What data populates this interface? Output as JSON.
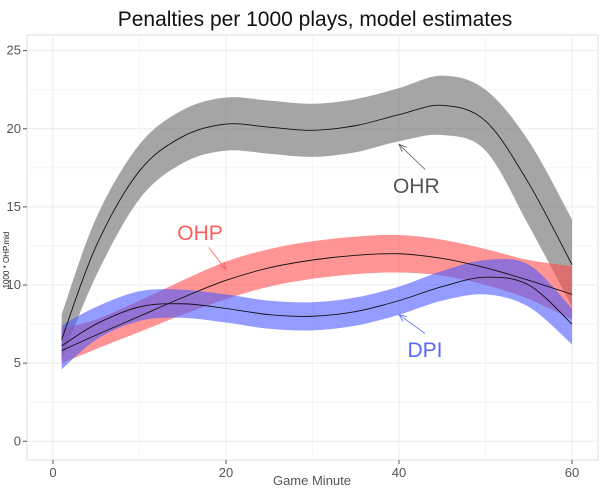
{
  "chart_data": {
    "type": "line",
    "title": "Penalties per 1000 plays, model estimates",
    "xlabel": "Game Minute",
    "ylabel": "1000 * OHP.mid",
    "xlim": [
      -3,
      63
    ],
    "ylim": [
      -1.2,
      26
    ],
    "xticks": [
      0,
      20,
      40,
      60
    ],
    "yticks": [
      0,
      5,
      10,
      15,
      20,
      25
    ],
    "grid": true,
    "x": [
      1,
      5,
      10,
      15,
      20,
      25,
      30,
      35,
      40,
      45,
      50,
      55,
      60
    ],
    "series": [
      {
        "name": "OHR",
        "color": "#7f7f7f",
        "fill_opacity": 0.7,
        "mid": [
          6.5,
          12.5,
          17.3,
          19.5,
          20.3,
          20.1,
          19.9,
          20.2,
          20.9,
          21.5,
          20.5,
          16.5,
          11.3
        ],
        "lo": [
          5.2,
          10.6,
          15.5,
          17.8,
          18.6,
          18.4,
          18.2,
          18.5,
          19.2,
          19.6,
          18.6,
          13.8,
          8.6
        ],
        "hi": [
          8.1,
          14.3,
          19.0,
          21.2,
          22.0,
          21.8,
          21.6,
          21.9,
          22.6,
          23.4,
          22.5,
          19.2,
          14.2
        ]
      },
      {
        "name": "OHP",
        "color": "#ff4d4d",
        "fill_opacity": 0.6,
        "mid": [
          5.8,
          6.8,
          8.0,
          9.2,
          10.3,
          11.1,
          11.6,
          11.9,
          12.0,
          11.7,
          11.1,
          10.3,
          9.4
        ],
        "lo": [
          5.0,
          5.9,
          7.0,
          8.1,
          9.1,
          9.9,
          10.4,
          10.7,
          10.8,
          10.6,
          10.0,
          9.1,
          7.8
        ],
        "hi": [
          7.2,
          7.8,
          9.0,
          10.3,
          11.5,
          12.3,
          12.8,
          13.1,
          13.2,
          12.9,
          12.3,
          11.6,
          11.2
        ]
      },
      {
        "name": "DPI",
        "color": "#4d5bff",
        "fill_opacity": 0.6,
        "mid": [
          6.1,
          7.5,
          8.6,
          8.8,
          8.5,
          8.1,
          8.0,
          8.3,
          9.0,
          9.9,
          10.5,
          10.0,
          7.5
        ],
        "lo": [
          4.6,
          6.5,
          7.7,
          7.9,
          7.6,
          7.2,
          7.1,
          7.4,
          8.1,
          9.0,
          9.4,
          8.6,
          6.2
        ],
        "hi": [
          7.4,
          8.6,
          9.6,
          9.7,
          9.4,
          9.0,
          8.9,
          9.2,
          9.9,
          10.9,
          11.6,
          11.3,
          8.5
        ]
      }
    ],
    "annotations": [
      {
        "text": "OHR",
        "color": "#555555",
        "label_at": [
          42,
          16.4
        ],
        "arrow_from": [
          43,
          17.4
        ],
        "arrow_to": [
          40,
          19.0
        ]
      },
      {
        "text": "OHP",
        "color": "#ff5c5c",
        "label_at": [
          17,
          13.4
        ],
        "arrow_from": [
          18,
          12.4
        ],
        "arrow_to": [
          20,
          11.0
        ]
      },
      {
        "text": "DPI",
        "color": "#5a67ff",
        "label_at": [
          43,
          5.9
        ],
        "arrow_from": [
          43,
          6.9
        ],
        "arrow_to": [
          40,
          8.1
        ]
      }
    ]
  }
}
